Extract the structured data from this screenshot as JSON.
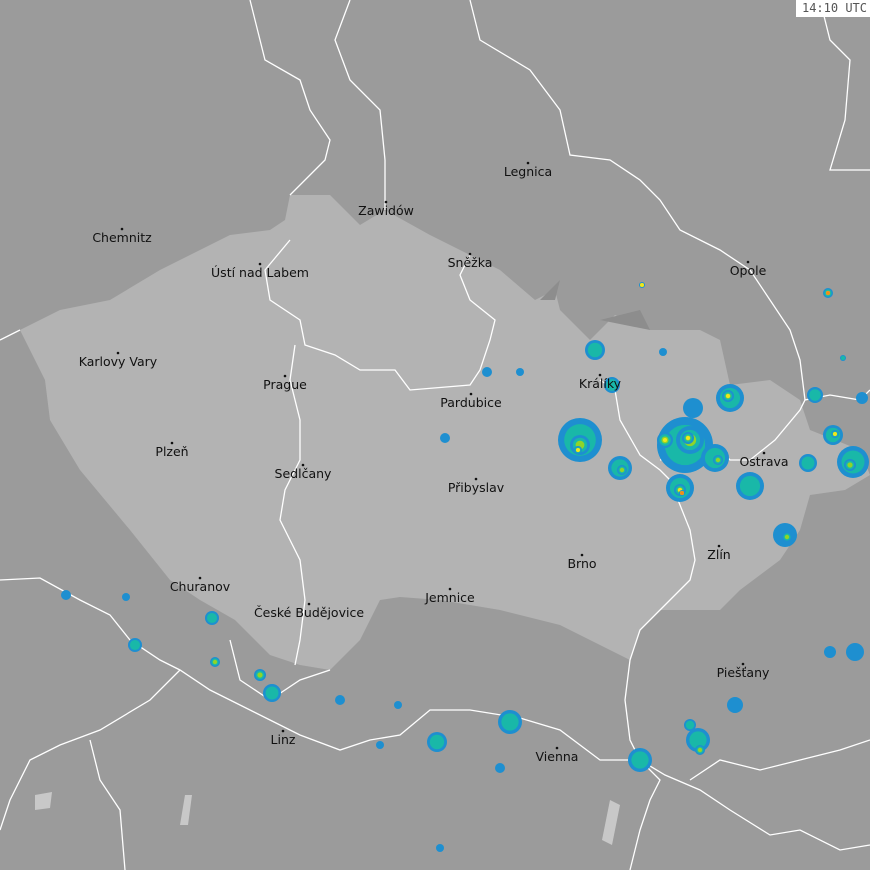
{
  "timestamp": "14:10 UTC",
  "colors": {
    "background": "#9b9b9b",
    "highlighted_country": "#b3b3b3",
    "border": "#ffffff",
    "radar_light": "#1e8fd0",
    "radar_medium": "#19b8a8",
    "radar_strong": "#8fd42a",
    "radar_heavy": "#f0e61e",
    "radar_extreme": "#f08c1e"
  },
  "cities": [
    {
      "name": "Chemnitz"
    },
    {
      "name": "Ústí nad Labem"
    },
    {
      "name": "Zawidów"
    },
    {
      "name": "Legnica"
    },
    {
      "name": "Sněžka"
    },
    {
      "name": "Opole"
    },
    {
      "name": "Karlovy Vary"
    },
    {
      "name": "Prague"
    },
    {
      "name": "Pardubice"
    },
    {
      "name": "Králíky"
    },
    {
      "name": "Plzeň"
    },
    {
      "name": "Sedlčany"
    },
    {
      "name": "Přibyslav"
    },
    {
      "name": "Ostrava"
    },
    {
      "name": "Brno"
    },
    {
      "name": "Zlín"
    },
    {
      "name": "Churanov"
    },
    {
      "name": "České Budějovice"
    },
    {
      "name": "Jemnice"
    },
    {
      "name": "Piešťany"
    },
    {
      "name": "Linz"
    },
    {
      "name": "Vienna"
    }
  ]
}
